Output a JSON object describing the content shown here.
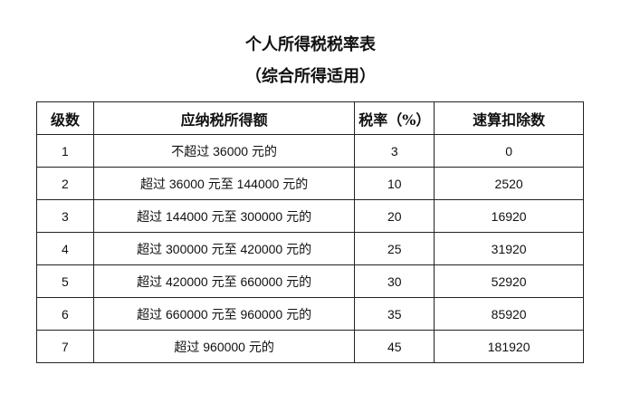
{
  "title": "个人所得税税率表",
  "subtitle": "（综合所得适用）",
  "table": {
    "headers": [
      "级数",
      "应纳税所得额",
      "税率（%）",
      "速算扣除数"
    ],
    "rows": [
      [
        "1",
        "不超过 36000 元的",
        "3",
        "0"
      ],
      [
        "2",
        "超过 36000 元至 144000 元的",
        "10",
        "2520"
      ],
      [
        "3",
        "超过 144000 元至 300000 元的",
        "20",
        "16920"
      ],
      [
        "4",
        "超过 300000 元至 420000 元的",
        "25",
        "31920"
      ],
      [
        "5",
        "超过 420000 元至 660000 元的",
        "30",
        "52920"
      ],
      [
        "6",
        "超过 660000 元至 960000 元的",
        "35",
        "85920"
      ],
      [
        "7",
        "超过 960000 元的",
        "45",
        "181920"
      ]
    ]
  }
}
